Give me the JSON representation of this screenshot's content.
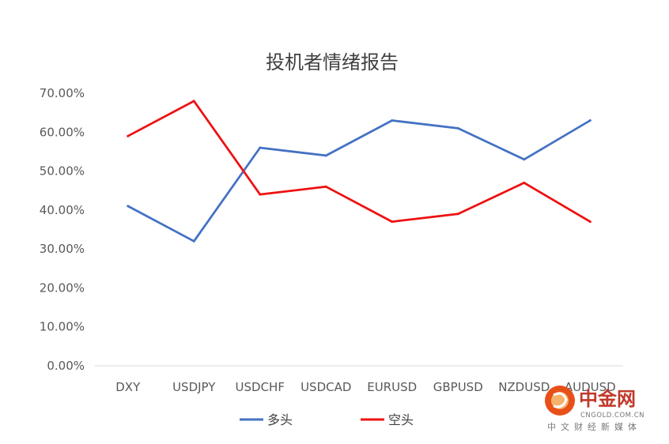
{
  "chart_data": {
    "type": "line",
    "title": "投机者情绪报告",
    "categories": [
      "DXY",
      "USDJPY",
      "USDCHF",
      "USDCAD",
      "EURUSD",
      "GBPUSD",
      "NZDUSD",
      "AUDUSD"
    ],
    "series": [
      {
        "name": "多头",
        "color": "#4472c4",
        "values": [
          0.41,
          0.32,
          0.56,
          0.54,
          0.63,
          0.61,
          0.53,
          0.63
        ]
      },
      {
        "name": "空头",
        "color": "#ee1111",
        "values": [
          0.59,
          0.68,
          0.44,
          0.46,
          0.37,
          0.39,
          0.47,
          0.37
        ]
      }
    ],
    "ylim": [
      0,
      0.7
    ],
    "yticks": [
      0,
      0.1,
      0.2,
      0.3,
      0.4,
      0.5,
      0.6,
      0.7
    ],
    "ytick_labels": [
      "0.00%",
      "10.00%",
      "20.00%",
      "30.00%",
      "40.00%",
      "50.00%",
      "60.00%",
      "70.00%"
    ],
    "xlabel": "",
    "ylabel": "",
    "grid": false,
    "legend_position": "bottom"
  },
  "watermark": {
    "logo_text": "中金网",
    "url_text": "CNGOLD.COM.CN",
    "subtitle_text": "中文财经新媒体",
    "accent_color": "#e8501a"
  }
}
